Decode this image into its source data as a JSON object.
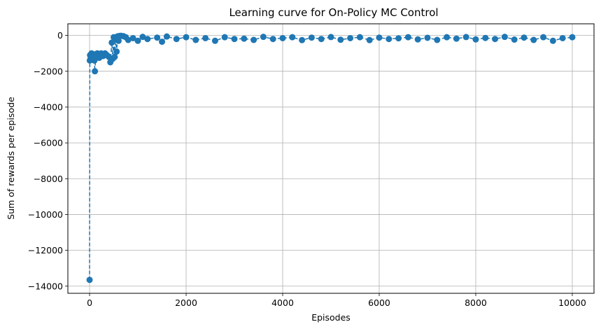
{
  "chart_data": {
    "type": "line",
    "title": "Learning curve for On-Policy MC Control",
    "xlabel": "Episodes",
    "ylabel": "Sum of rewards per episode",
    "xlim": [
      -450,
      10450
    ],
    "ylim": [
      -14400,
      650
    ],
    "xticks": [
      0,
      2000,
      4000,
      6000,
      8000,
      10000
    ],
    "xtick_labels": [
      "0",
      "2000",
      "4000",
      "6000",
      "8000",
      "10000"
    ],
    "yticks": [
      0,
      -2000,
      -4000,
      -6000,
      -8000,
      -10000,
      -12000,
      -14000
    ],
    "ytick_labels": [
      "0",
      "−2000",
      "−4000",
      "−6000",
      "−8000",
      "−10000",
      "−12000",
      "−14000"
    ],
    "grid": true,
    "legend": "none",
    "marker": "circle",
    "linestyle": "dashed",
    "color": "#1f77b4",
    "series": [
      {
        "x": [
          0,
          5,
          10,
          20,
          40,
          60,
          80,
          100,
          110,
          130,
          160,
          200,
          240,
          280,
          320,
          360,
          400,
          430,
          460,
          480,
          500,
          520,
          540,
          560,
          580,
          600,
          620,
          650,
          700,
          750,
          800,
          900,
          1000,
          1100,
          1200,
          1400,
          1500,
          1600,
          1800,
          2000,
          2200,
          2400,
          2600,
          2800,
          3000,
          3200,
          3400,
          3600,
          3800,
          4000,
          4200,
          4400,
          4600,
          4800,
          5000,
          5200,
          5400,
          5600,
          5800,
          6000,
          6200,
          6400,
          6600,
          6800,
          7000,
          7200,
          7400,
          7600,
          7800,
          8000,
          8200,
          8400,
          8600,
          8800,
          9000,
          9200,
          9400,
          9600,
          9800,
          10000
        ],
        "y": [
          -13650,
          -1400,
          -1100,
          -1300,
          -1000,
          -1200,
          -1050,
          -1400,
          -2000,
          -1100,
          -1000,
          -1250,
          -1000,
          -1150,
          -1000,
          -1100,
          -1200,
          -1500,
          -400,
          -1300,
          -100,
          -1200,
          -200,
          -900,
          -50,
          -300,
          -30,
          -20,
          -40,
          -100,
          -250,
          -150,
          -300,
          -80,
          -200,
          -120,
          -350,
          -60,
          -200,
          -100,
          -250,
          -150,
          -300,
          -100,
          -200,
          -180,
          -250,
          -80,
          -200,
          -150,
          -100,
          -260,
          -120,
          -200,
          -90,
          -240,
          -150,
          -100,
          -260,
          -120,
          -200,
          -160,
          -100,
          -220,
          -130,
          -250,
          -100,
          -180,
          -90,
          -220,
          -140,
          -200,
          -80,
          -230,
          -120,
          -250,
          -100,
          -300,
          -150,
          -100
        ]
      }
    ]
  }
}
